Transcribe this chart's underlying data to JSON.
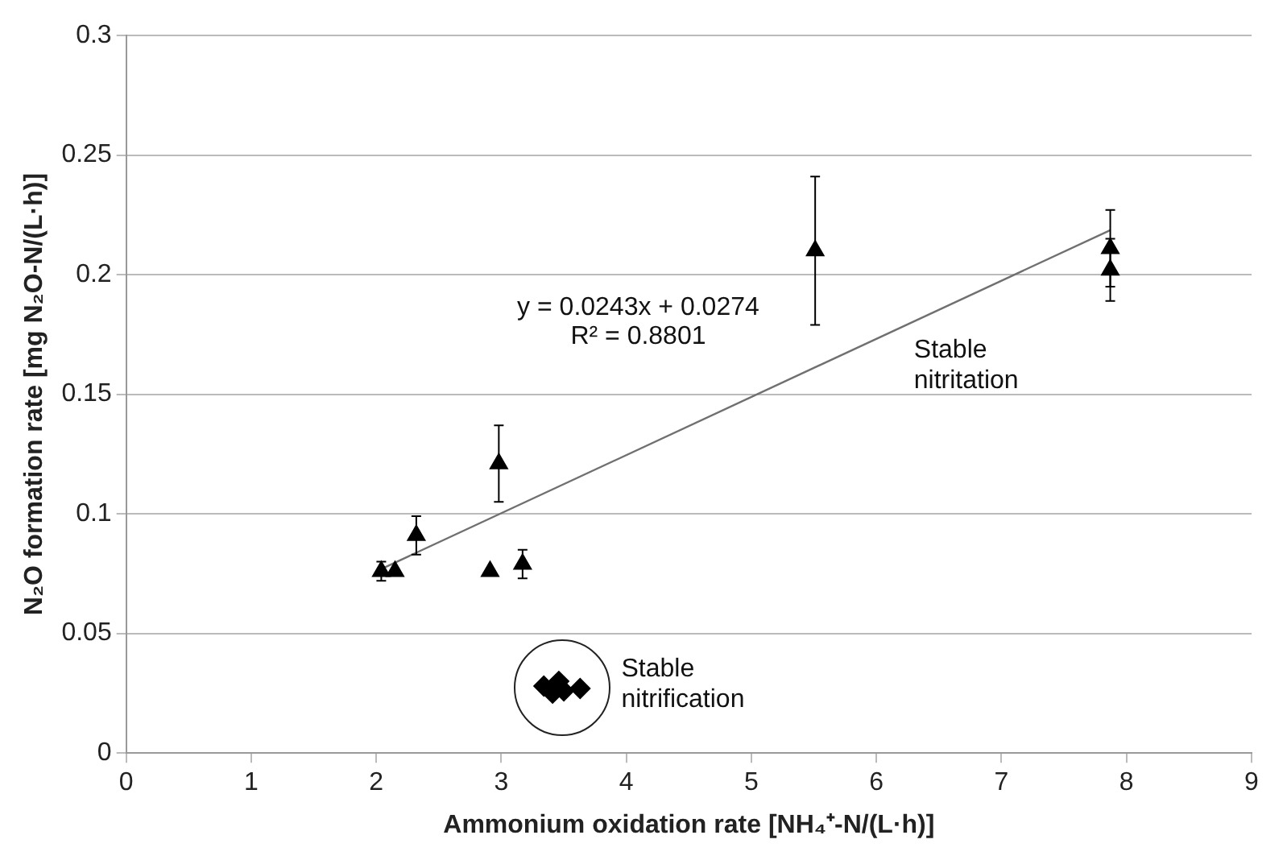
{
  "chart_data": {
    "type": "scatter",
    "xlabel": "Ammonium oxidation rate [NH₄⁺-N/(L·h)]",
    "ylabel": "N₂O formation rate [mg N₂O-N/(L·h)]",
    "series": [
      {
        "type": "scatter",
        "marker": "triangle",
        "color": "#000000",
        "x": [
          2.04,
          2.15,
          2.32,
          2.91,
          2.98,
          3.17,
          5.51,
          7.87,
          7.87
        ],
        "values": [
          0.076,
          0.076,
          0.091,
          0.076,
          0.121,
          0.079,
          0.21,
          0.211,
          0.202
        ],
        "errors": [
          0.004,
          null,
          0.008,
          null,
          0.016,
          0.006,
          0.031,
          0.016,
          0.013
        ]
      },
      {
        "type": "scatter",
        "marker": "diamond",
        "color": "#000000",
        "x": [
          3.34,
          3.41,
          3.46,
          3.5,
          3.63
        ],
        "values": [
          0.028,
          0.025,
          0.03,
          0.026,
          0.027
        ]
      },
      {
        "type": "line",
        "marker": "none",
        "color": "#707070",
        "x": [
          2.03,
          7.87
        ],
        "values": [
          0.0767,
          0.2186
        ]
      }
    ],
    "xlim": [
      0,
      9
    ],
    "xticks": [
      0,
      1,
      2,
      3,
      4,
      5,
      6,
      7,
      8,
      9
    ],
    "ylim": [
      0,
      0.3
    ],
    "yticks": [
      0,
      0.05,
      0.1,
      0.15,
      0.2,
      0.25,
      0.3
    ],
    "grid": "y",
    "legend": false,
    "annotations": [
      "y = 0.0243x + 0.0274",
      "R² = 0.8801",
      "Stable\nnitritation",
      "Stable\nnitrification"
    ]
  }
}
